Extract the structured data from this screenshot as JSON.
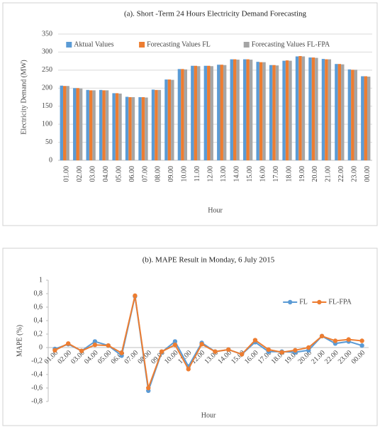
{
  "chart_data": [
    {
      "type": "bar",
      "title": "(a). Short -Term 24 Hours Electricity Demand Forecasting",
      "x_label": "Hour",
      "y_label": "Electricity Demand (MW)",
      "categories": [
        "01.00",
        "02.00",
        "03.00",
        "04.00",
        "05.00",
        "06.00",
        "07.00",
        "08.00",
        "09.00",
        "10.00",
        "11.00",
        "12.00",
        "13.00",
        "14.00",
        "15.00",
        "16.00",
        "17.00",
        "18.00",
        "19.00",
        "20.00",
        "21.00",
        "22.00",
        "23.00",
        "00.00"
      ],
      "series": [
        {
          "name": "Aktual Values",
          "color": "#5b9bd5",
          "values": [
            207,
            200,
            195,
            195,
            186,
            176,
            175,
            196,
            224,
            253,
            262,
            262,
            265,
            280,
            280,
            273,
            264,
            276,
            288,
            285,
            281,
            267,
            252,
            233
          ]
        },
        {
          "name": "Forecasting Values FL",
          "color": "#ed7d31",
          "values": [
            206,
            200,
            194,
            194,
            186,
            175,
            175,
            195,
            224,
            253,
            262,
            262,
            265,
            280,
            280,
            272,
            264,
            277,
            289,
            285,
            280,
            267,
            251,
            233
          ]
        },
        {
          "name": "Forecasting Values FL-FPA",
          "color": "#a5a5a5",
          "values": [
            206,
            199,
            194,
            194,
            185,
            175,
            174,
            195,
            223,
            252,
            261,
            261,
            264,
            279,
            279,
            272,
            263,
            276,
            288,
            284,
            280,
            266,
            251,
            232
          ]
        }
      ],
      "ylim": [
        0,
        350
      ],
      "yticks": [
        0,
        50,
        100,
        150,
        200,
        250,
        300,
        350
      ],
      "grid": true,
      "legend": "top"
    },
    {
      "type": "line",
      "title": "(b). MAPE Result in Monday, 6 July 2015",
      "x_label": "Hour",
      "y_label": "MAPE (%)",
      "categories": [
        "01.00",
        "02.00",
        "03.00",
        "04.00",
        "05.00",
        "06.00",
        "07.00",
        "08.00",
        "09.00",
        "10.00",
        "11.00",
        "12.00",
        "13.00",
        "14.00",
        "15.00",
        "16.00",
        "17.00",
        "18.00",
        "19.00",
        "20.00",
        "21.00",
        "22.00",
        "23.00",
        "00.00"
      ],
      "series": [
        {
          "name": "FL",
          "color": "#5b9bd5",
          "values": [
            -0.02,
            0.05,
            -0.05,
            0.09,
            0.03,
            -0.12,
            0.76,
            -0.64,
            -0.07,
            0.09,
            -0.28,
            0.07,
            -0.06,
            -0.03,
            -0.1,
            0.08,
            -0.06,
            -0.06,
            -0.07,
            -0.04,
            0.17,
            0.06,
            0.09,
            0.03
          ]
        },
        {
          "name": "FL-FPA",
          "color": "#ed7d31",
          "values": [
            -0.04,
            0.06,
            -0.05,
            0.04,
            0.03,
            -0.08,
            0.77,
            -0.6,
            -0.06,
            0.04,
            -0.32,
            0.05,
            -0.06,
            -0.03,
            -0.1,
            0.11,
            -0.03,
            -0.07,
            -0.04,
            0.0,
            0.17,
            0.1,
            0.12,
            0.1
          ]
        }
      ],
      "ylim": [
        -0.8,
        1
      ],
      "yticks": [
        1,
        {
          "value": 0.8,
          "label": "0,8"
        },
        {
          "value": 0.6,
          "label": "0,6"
        },
        {
          "value": 0.4,
          "label": "0,4"
        },
        {
          "value": 0.2,
          "label": "0,2"
        },
        0,
        {
          "value": -0.2,
          "label": "-0,2"
        },
        {
          "value": -0.4,
          "label": "-0,4"
        },
        {
          "value": -0.6,
          "label": "-0,6"
        },
        {
          "value": -0.8,
          "label": "-0,8"
        }
      ],
      "grid": false,
      "legend": "upper right"
    }
  ]
}
